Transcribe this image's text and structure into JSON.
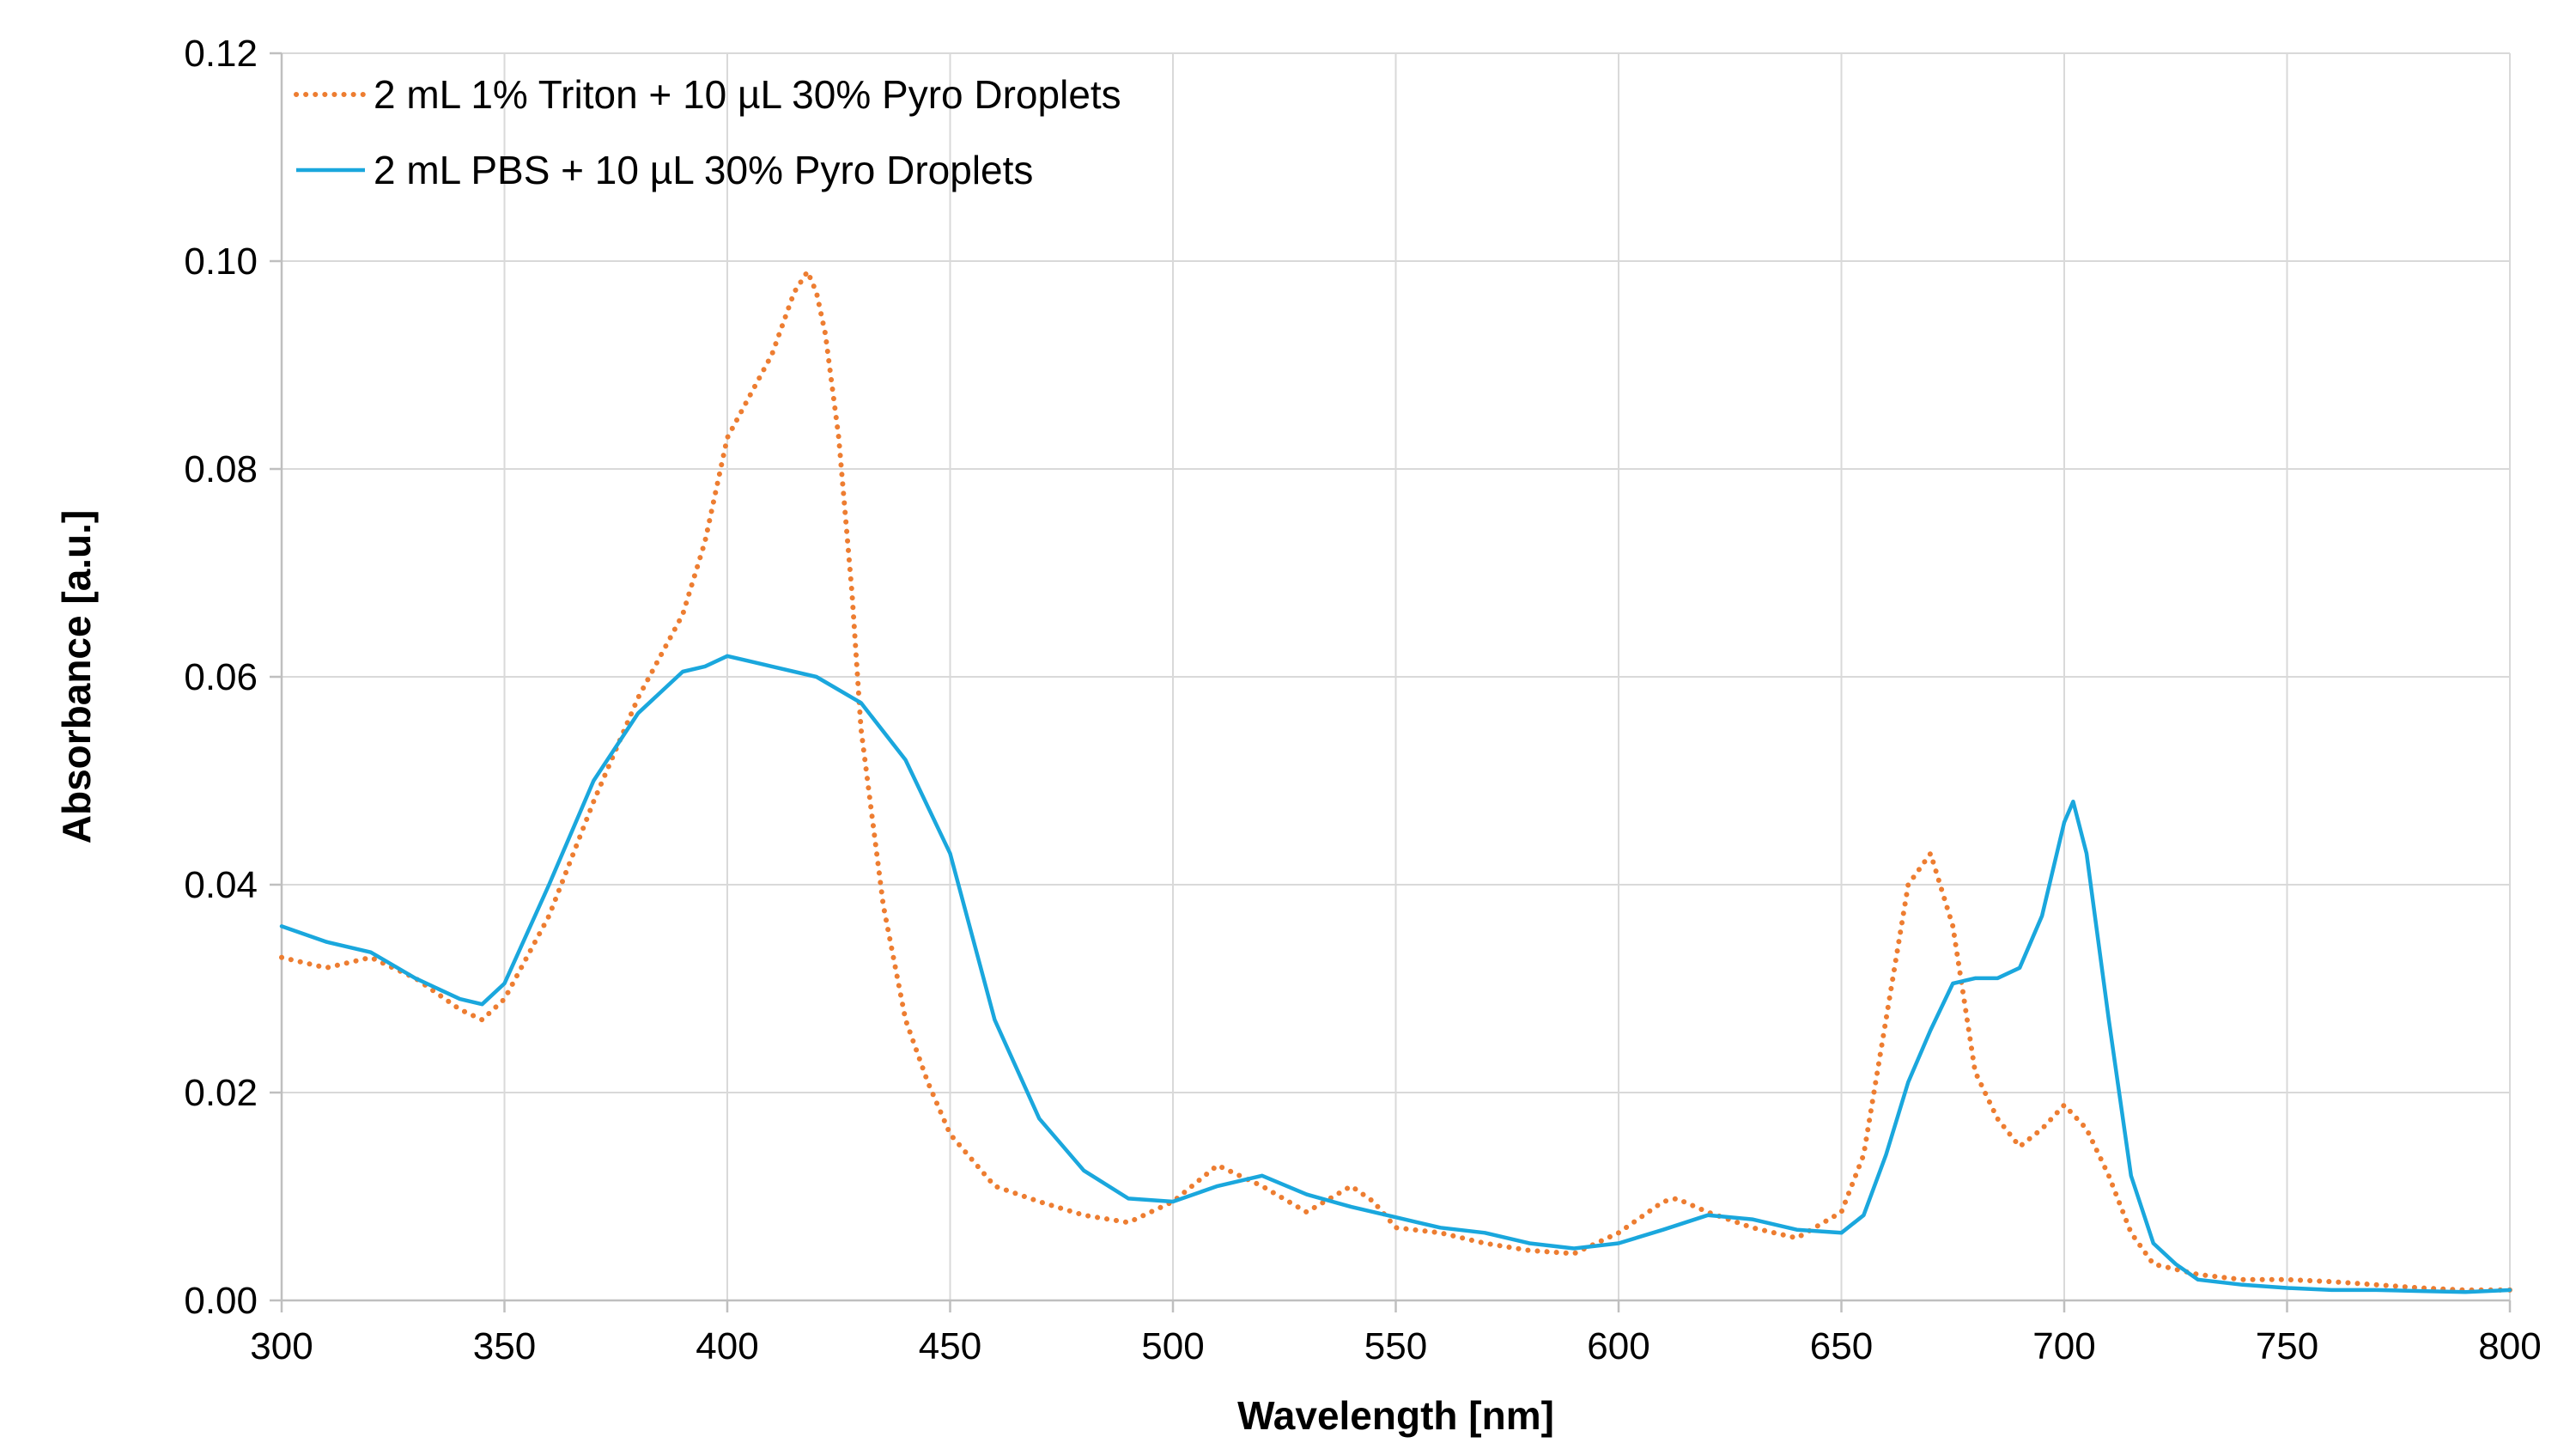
{
  "chart_data": {
    "type": "line",
    "title": "",
    "xlabel": "Wavelength [nm]",
    "ylabel": "Absorbance [a.u.]",
    "xlim": [
      300,
      800
    ],
    "ylim": [
      0,
      0.12
    ],
    "x_ticks": [
      300,
      350,
      400,
      450,
      500,
      550,
      600,
      650,
      700,
      750,
      800
    ],
    "x_tick_labels": [
      "300",
      "350",
      "400",
      "450",
      "500",
      "550",
      "600",
      "650",
      "700",
      "750",
      "800"
    ],
    "y_ticks": [
      0,
      0.02,
      0.04,
      0.06,
      0.08,
      0.1,
      0.12
    ],
    "y_tick_labels": [
      "0.00",
      "0.02",
      "0.04",
      "0.06",
      "0.08",
      "0.10",
      "0.12"
    ],
    "grid": true,
    "legend_position": "top-left",
    "series": [
      {
        "name": "2 mL 1% Triton + 10 µL 30% Pyro Droplets",
        "color": "#ed7d31",
        "line_style": "dotted",
        "x": [
          300,
          310,
          320,
          330,
          340,
          345,
          350,
          360,
          370,
          380,
          390,
          395,
          400,
          405,
          410,
          415,
          418,
          420,
          422,
          425,
          428,
          430,
          435,
          440,
          445,
          450,
          460,
          470,
          480,
          490,
          500,
          510,
          520,
          530,
          540,
          545,
          550,
          560,
          570,
          580,
          590,
          600,
          610,
          613,
          620,
          630,
          640,
          650,
          655,
          660,
          665,
          670,
          675,
          680,
          685,
          690,
          695,
          700,
          705,
          710,
          715,
          720,
          730,
          740,
          750,
          760,
          770,
          780,
          790,
          800
        ],
        "y": [
          0.033,
          0.032,
          0.033,
          0.031,
          0.028,
          0.027,
          0.029,
          0.037,
          0.048,
          0.058,
          0.066,
          0.073,
          0.083,
          0.087,
          0.091,
          0.097,
          0.099,
          0.097,
          0.093,
          0.083,
          0.068,
          0.055,
          0.038,
          0.027,
          0.021,
          0.016,
          0.011,
          0.0095,
          0.0082,
          0.0075,
          0.0095,
          0.013,
          0.011,
          0.0085,
          0.011,
          0.0095,
          0.007,
          0.0065,
          0.0055,
          0.0048,
          0.0045,
          0.0065,
          0.0095,
          0.0098,
          0.0085,
          0.007,
          0.006,
          0.0085,
          0.014,
          0.027,
          0.04,
          0.043,
          0.036,
          0.022,
          0.0175,
          0.0148,
          0.0165,
          0.0188,
          0.0165,
          0.012,
          0.0065,
          0.0035,
          0.0025,
          0.002,
          0.002,
          0.0018,
          0.0015,
          0.0012,
          0.001,
          0.001
        ]
      },
      {
        "name": "2 mL PBS + 10 µL 30% Pyro Droplets",
        "color": "#1aa7dd",
        "line_style": "solid",
        "x": [
          300,
          310,
          320,
          330,
          340,
          345,
          350,
          360,
          370,
          380,
          390,
          395,
          400,
          405,
          410,
          420,
          430,
          440,
          450,
          460,
          470,
          480,
          490,
          500,
          510,
          520,
          530,
          540,
          550,
          560,
          570,
          580,
          590,
          600,
          610,
          620,
          630,
          640,
          650,
          655,
          660,
          665,
          670,
          675,
          680,
          685,
          690,
          695,
          700,
          702,
          705,
          710,
          715,
          720,
          725,
          730,
          740,
          750,
          760,
          770,
          780,
          790,
          800
        ],
        "y": [
          0.036,
          0.0345,
          0.0335,
          0.031,
          0.029,
          0.0285,
          0.0305,
          0.04,
          0.05,
          0.0565,
          0.0605,
          0.061,
          0.062,
          0.0615,
          0.061,
          0.06,
          0.0575,
          0.052,
          0.043,
          0.027,
          0.0175,
          0.0125,
          0.0098,
          0.0095,
          0.011,
          0.012,
          0.0102,
          0.009,
          0.008,
          0.007,
          0.0065,
          0.0055,
          0.005,
          0.0055,
          0.0068,
          0.0082,
          0.0078,
          0.0068,
          0.0065,
          0.0082,
          0.014,
          0.021,
          0.026,
          0.0305,
          0.031,
          0.031,
          0.032,
          0.037,
          0.046,
          0.048,
          0.043,
          0.027,
          0.012,
          0.0055,
          0.0035,
          0.002,
          0.0015,
          0.0012,
          0.001,
          0.001,
          0.0009,
          0.0008,
          0.001
        ]
      }
    ]
  }
}
